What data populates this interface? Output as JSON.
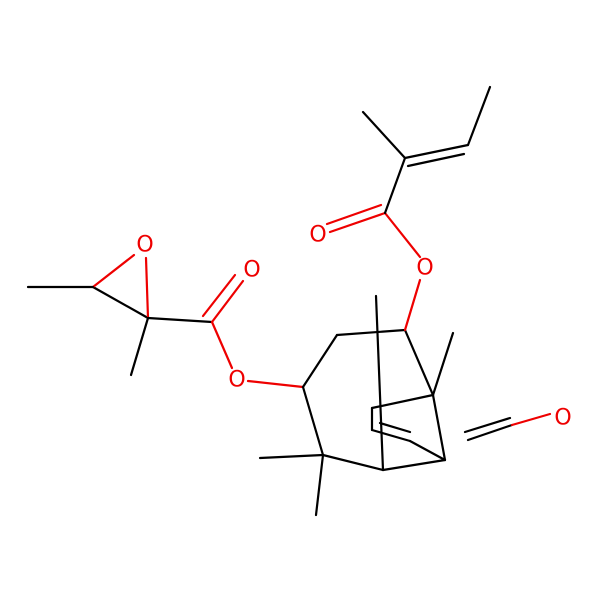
{
  "atoms": [
    {
      "label": "O"
    },
    {
      "label": "O"
    },
    {
      "label": "O"
    },
    {
      "label": "O"
    },
    {
      "label": "O"
    },
    {
      "label": "O"
    }
  ]
}
